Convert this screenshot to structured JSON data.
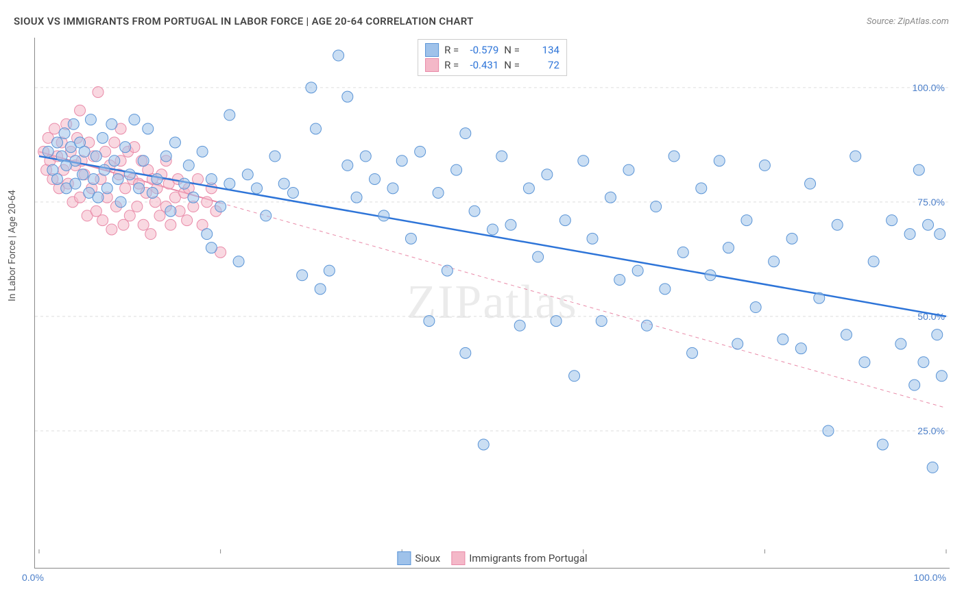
{
  "title": "SIOUX VS IMMIGRANTS FROM PORTUGAL IN LABOR FORCE | AGE 20-64 CORRELATION CHART",
  "source": "Source: ZipAtlas.com",
  "y_axis_label": "In Labor Force | Age 20-64",
  "watermark": "ZIPatlas",
  "chart": {
    "type": "scatter",
    "x_domain": [
      0,
      100
    ],
    "y_domain": [
      0,
      110
    ],
    "y_ticks": [
      25,
      50,
      75,
      100
    ],
    "y_tick_labels": [
      "25.0%",
      "50.0%",
      "75.0%",
      "100.0%"
    ],
    "x_ticks": [
      0,
      20,
      40,
      60,
      80,
      100
    ],
    "x_tick_labels": {
      "0": "0.0%",
      "100": "100.0%"
    },
    "background_color": "#ffffff",
    "grid_color": "#dddddd",
    "marker_radius": 8,
    "marker_opacity": 0.55,
    "series": [
      {
        "name": "Sioux",
        "fill_color": "#9fc2ea",
        "stroke_color": "#5a94d6",
        "line_color": "#2d74d8",
        "line_width": 2.5,
        "r_value": "-0.579",
        "n_value": "134",
        "trend": {
          "x1": 0,
          "y1": 85,
          "x2": 100,
          "y2": 50,
          "solid_until_x": 100
        },
        "points": [
          [
            1,
            86
          ],
          [
            1.5,
            82
          ],
          [
            2,
            88
          ],
          [
            2,
            80
          ],
          [
            2.5,
            85
          ],
          [
            2.8,
            90
          ],
          [
            3,
            83
          ],
          [
            3,
            78
          ],
          [
            3.5,
            87
          ],
          [
            3.8,
            92
          ],
          [
            4,
            84
          ],
          [
            4,
            79
          ],
          [
            4.5,
            88
          ],
          [
            4.8,
            81
          ],
          [
            5,
            86
          ],
          [
            5.5,
            77
          ],
          [
            5.7,
            93
          ],
          [
            6,
            80
          ],
          [
            6.3,
            85
          ],
          [
            6.5,
            76
          ],
          [
            7,
            89
          ],
          [
            7.2,
            82
          ],
          [
            7.5,
            78
          ],
          [
            8,
            92
          ],
          [
            8.3,
            84
          ],
          [
            8.7,
            80
          ],
          [
            9,
            75
          ],
          [
            9.5,
            87
          ],
          [
            10,
            81
          ],
          [
            10.5,
            93
          ],
          [
            11,
            78
          ],
          [
            11.5,
            84
          ],
          [
            12,
            91
          ],
          [
            12.5,
            77
          ],
          [
            13,
            80
          ],
          [
            14,
            85
          ],
          [
            14.5,
            73
          ],
          [
            15,
            88
          ],
          [
            16,
            79
          ],
          [
            16.5,
            83
          ],
          [
            17,
            76
          ],
          [
            18,
            86
          ],
          [
            18.5,
            68
          ],
          [
            19,
            80
          ],
          [
            20,
            74
          ],
          [
            21,
            94
          ],
          [
            22,
            62
          ],
          [
            23,
            81
          ],
          [
            24,
            78
          ],
          [
            25,
            72
          ],
          [
            26,
            85
          ],
          [
            27,
            79
          ],
          [
            28,
            77
          ],
          [
            29,
            59
          ],
          [
            30,
            100
          ],
          [
            30.5,
            91
          ],
          [
            31,
            56
          ],
          [
            32,
            60
          ],
          [
            33,
            107
          ],
          [
            34,
            83
          ],
          [
            35,
            76
          ],
          [
            36,
            85
          ],
          [
            37,
            80
          ],
          [
            38,
            72
          ],
          [
            39,
            78
          ],
          [
            40,
            84
          ],
          [
            41,
            67
          ],
          [
            42,
            86
          ],
          [
            43,
            49
          ],
          [
            44,
            77
          ],
          [
            45,
            60
          ],
          [
            46,
            82
          ],
          [
            47,
            42
          ],
          [
            48,
            73
          ],
          [
            49,
            22
          ],
          [
            50,
            69
          ],
          [
            51,
            85
          ],
          [
            52,
            70
          ],
          [
            53,
            48
          ],
          [
            54,
            78
          ],
          [
            55,
            63
          ],
          [
            56,
            81
          ],
          [
            57,
            49
          ],
          [
            58,
            71
          ],
          [
            59,
            37
          ],
          [
            60,
            84
          ],
          [
            61,
            67
          ],
          [
            62,
            49
          ],
          [
            63,
            76
          ],
          [
            64,
            58
          ],
          [
            65,
            82
          ],
          [
            66,
            60
          ],
          [
            67,
            48
          ],
          [
            68,
            74
          ],
          [
            69,
            56
          ],
          [
            70,
            85
          ],
          [
            71,
            64
          ],
          [
            72,
            42
          ],
          [
            73,
            78
          ],
          [
            74,
            59
          ],
          [
            75,
            84
          ],
          [
            76,
            65
          ],
          [
            77,
            44
          ],
          [
            78,
            71
          ],
          [
            79,
            52
          ],
          [
            80,
            83
          ],
          [
            81,
            62
          ],
          [
            82,
            45
          ],
          [
            83,
            67
          ],
          [
            84,
            43
          ],
          [
            85,
            79
          ],
          [
            86,
            54
          ],
          [
            87,
            25
          ],
          [
            88,
            70
          ],
          [
            89,
            46
          ],
          [
            90,
            85
          ],
          [
            91,
            40
          ],
          [
            92,
            62
          ],
          [
            93,
            22
          ],
          [
            94,
            71
          ],
          [
            95,
            44
          ],
          [
            96,
            68
          ],
          [
            96.5,
            35
          ],
          [
            97,
            82
          ],
          [
            97.5,
            40
          ],
          [
            98,
            70
          ],
          [
            98.5,
            17
          ],
          [
            99,
            46
          ],
          [
            99.3,
            68
          ],
          [
            99.5,
            37
          ],
          [
            21,
            79
          ],
          [
            34,
            98
          ],
          [
            47,
            90
          ],
          [
            19,
            65
          ]
        ]
      },
      {
        "name": "Immigrants from Portugal",
        "fill_color": "#f4b8c8",
        "stroke_color": "#e98aa8",
        "line_color": "#e98aa8",
        "line_width": 2,
        "r_value": "-0.431",
        "n_value": "72",
        "trend": {
          "x1": 0,
          "y1": 86,
          "x2": 100,
          "y2": 30,
          "solid_until_x": 20
        },
        "points": [
          [
            0.5,
            86
          ],
          [
            0.8,
            82
          ],
          [
            1,
            89
          ],
          [
            1.2,
            84
          ],
          [
            1.5,
            80
          ],
          [
            1.7,
            91
          ],
          [
            2,
            85
          ],
          [
            2.2,
            78
          ],
          [
            2.5,
            88
          ],
          [
            2.7,
            82
          ],
          [
            3,
            92
          ],
          [
            3.2,
            79
          ],
          [
            3.5,
            86
          ],
          [
            3.7,
            75
          ],
          [
            4,
            83
          ],
          [
            4.2,
            89
          ],
          [
            4.5,
            76
          ],
          [
            4.7,
            84
          ],
          [
            5,
            81
          ],
          [
            5.3,
            72
          ],
          [
            5.5,
            88
          ],
          [
            5.8,
            78
          ],
          [
            6,
            85
          ],
          [
            6.3,
            73
          ],
          [
            6.5,
            99
          ],
          [
            6.8,
            80
          ],
          [
            7,
            71
          ],
          [
            7.3,
            86
          ],
          [
            7.5,
            76
          ],
          [
            7.8,
            83
          ],
          [
            8,
            69
          ],
          [
            8.3,
            88
          ],
          [
            8.5,
            74
          ],
          [
            8.8,
            81
          ],
          [
            9,
            84
          ],
          [
            9.3,
            70
          ],
          [
            9.5,
            78
          ],
          [
            9.8,
            86
          ],
          [
            10,
            72
          ],
          [
            10.3,
            80
          ],
          [
            10.5,
            87
          ],
          [
            10.8,
            74
          ],
          [
            11,
            79
          ],
          [
            11.3,
            84
          ],
          [
            11.5,
            70
          ],
          [
            11.8,
            77
          ],
          [
            12,
            82
          ],
          [
            12.3,
            68
          ],
          [
            12.5,
            80
          ],
          [
            12.8,
            75
          ],
          [
            13,
            78
          ],
          [
            13.3,
            72
          ],
          [
            13.5,
            81
          ],
          [
            14,
            74
          ],
          [
            14.3,
            79
          ],
          [
            14.5,
            70
          ],
          [
            15,
            76
          ],
          [
            15.3,
            80
          ],
          [
            15.5,
            73
          ],
          [
            16,
            77
          ],
          [
            16.3,
            71
          ],
          [
            16.5,
            78
          ],
          [
            17,
            74
          ],
          [
            17.5,
            80
          ],
          [
            18,
            70
          ],
          [
            18.5,
            75
          ],
          [
            19,
            78
          ],
          [
            19.5,
            73
          ],
          [
            20,
            64
          ],
          [
            14,
            84
          ],
          [
            4.5,
            95
          ],
          [
            9,
            91
          ]
        ]
      }
    ]
  },
  "stats_legend_labels": {
    "r": "R =",
    "n": "N ="
  },
  "series_legend_labels": [
    "Sioux",
    "Immigrants from Portugal"
  ]
}
